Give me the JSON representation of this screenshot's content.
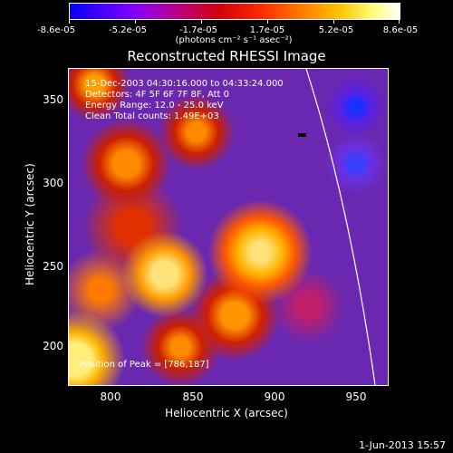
{
  "colorbar": {
    "ticks": [
      "-8.6e-05",
      "-5.2e-05",
      "-1.7e-05",
      "1.7e-05",
      "5.2e-05",
      "8.6e-05"
    ],
    "units": "(photons cm⁻² s⁻¹ asec⁻²)"
  },
  "plot": {
    "title": "Reconstructed RHESSI Image",
    "info_lines": [
      "15-Dec-2003 04:30:16.000 to 04:33:24.000",
      "Detectors: 4F 5F 6F 7F 8F, Att 0",
      "Energy Range: 12.0 - 25.0 keV",
      "Clean     Total counts: 1.49E+03"
    ],
    "peak_label": "Position of Peak = [786,187]"
  },
  "axes": {
    "ylabel": "Heliocentric Y (arcsec)",
    "xlabel": "Heliocentric X (arcsec)",
    "yticks": [
      "350",
      "300",
      "250",
      "200"
    ],
    "xticks": [
      "800",
      "850",
      "900",
      "950"
    ]
  },
  "footer": {
    "timestamp": "1-Jun-2013 15:57"
  },
  "colors": {
    "background": "#000000",
    "foreground": "#ffffff",
    "limb_line": "#ffffff"
  }
}
